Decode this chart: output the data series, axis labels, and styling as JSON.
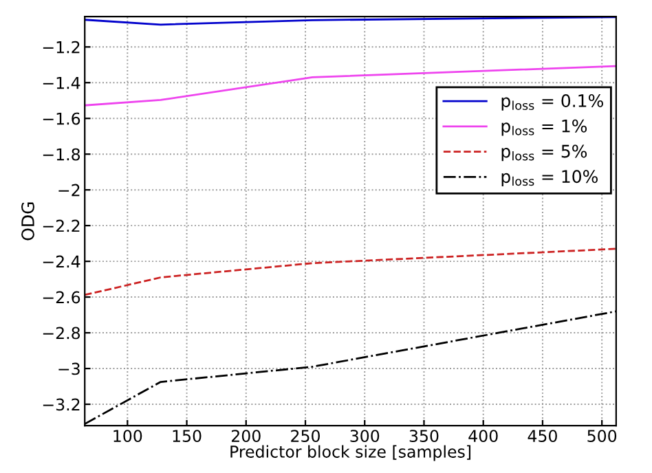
{
  "chart_data": {
    "type": "line",
    "xlabel": "Predictor block size [samples]",
    "ylabel": "ODG",
    "x": [
      64,
      128,
      256,
      512
    ],
    "series": [
      {
        "name": "p$_{loss}$ = 0.1%",
        "color": "#0000cc",
        "values": [
          -1.048,
          -1.075,
          -1.05,
          -1.033
        ],
        "line_style": "solid"
      },
      {
        "name": "p$_{loss}$ = 1%",
        "color": "#ee44ee",
        "values": [
          -1.527,
          -1.497,
          -1.37,
          -1.307
        ],
        "line_style": "solid"
      },
      {
        "name": "p$_{loss}$ = 5%",
        "color": "#cc2222",
        "values": [
          -2.588,
          -2.49,
          -2.41,
          -2.33
        ],
        "line_style": "dashed"
      },
      {
        "name": "p$_{loss}$ = 10%",
        "color": "#000000",
        "values": [
          -3.31,
          -3.075,
          -2.99,
          -2.68
        ],
        "line_style": "dashdot"
      }
    ],
    "xlim": [
      64,
      512
    ],
    "xticks": [
      100,
      150,
      200,
      250,
      300,
      350,
      400,
      450,
      500
    ],
    "ylim": [
      -3.32,
      -1.03
    ],
    "yticks": [
      {
        "value": -3.2,
        "label": "−3.2"
      },
      {
        "value": -3,
        "label": "−3"
      },
      {
        "value": -2.8,
        "label": "−2.8"
      },
      {
        "value": -2.6,
        "label": "−2.6"
      },
      {
        "value": -2.4,
        "label": "−2.4"
      },
      {
        "value": -2.2,
        "label": "−2.2"
      },
      {
        "value": -2,
        "label": "−2"
      },
      {
        "value": -1.8,
        "label": "−1.8"
      },
      {
        "value": -1.6,
        "label": "−1.6"
      },
      {
        "value": -1.4,
        "label": "−1.4"
      },
      {
        "value": -1.2,
        "label": "−1.2"
      }
    ],
    "grid": true,
    "legend": "right",
    "marker": "none"
  }
}
